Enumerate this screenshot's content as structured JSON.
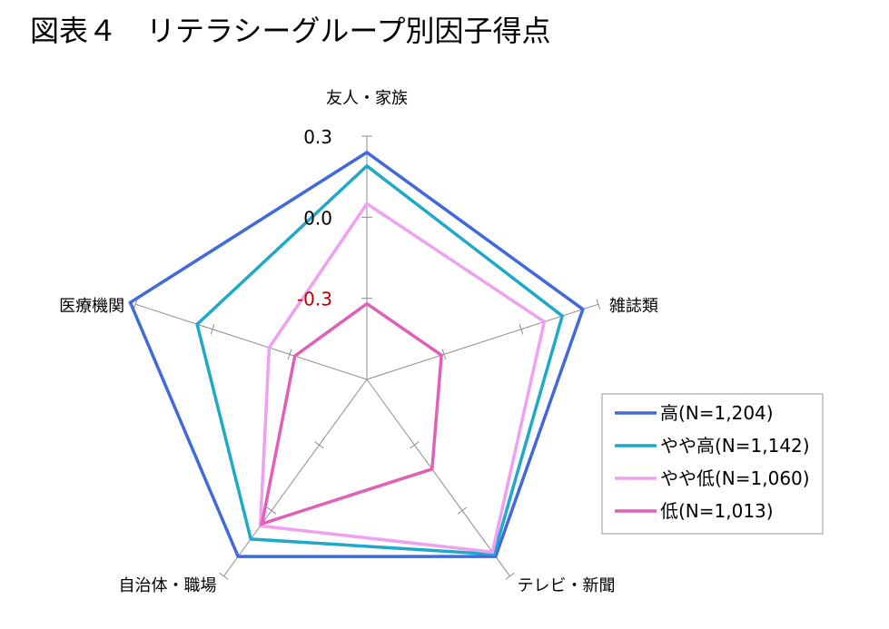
{
  "title": "図表４　リテラシーグループ別因子得点",
  "chart_data": {
    "type": "radar",
    "title": "図表４　リテラシーグループ別因子得点",
    "axes": [
      "友人・家族",
      "雑誌類",
      "テレビ・新聞",
      "自治体・職場",
      "医療機関"
    ],
    "range": [
      -0.6,
      0.3
    ],
    "ticks": [
      {
        "value": 0.3,
        "label": "0.3",
        "color": "#000000"
      },
      {
        "value": 0.0,
        "label": "0.0",
        "color": "#000000"
      },
      {
        "value": -0.3,
        "label": "-0.3",
        "color": "#c00000"
      }
    ],
    "gridlines": false,
    "legend_position": "right",
    "series": [
      {
        "name": "高(N=1,204)",
        "color": "#4169d9",
        "values": [
          0.24,
          0.24,
          0.21,
          0.21,
          0.32
        ]
      },
      {
        "name": "やや高(N=1,142)",
        "color": "#1fa9c9",
        "values": [
          0.19,
          0.16,
          0.2,
          0.13,
          0.06
        ]
      },
      {
        "name": "やや低(N=1,060)",
        "color": "#f0a0f0",
        "values": [
          0.05,
          0.09,
          0.19,
          0.07,
          -0.22
        ]
      },
      {
        "name": "低(N=1,013)",
        "color": "#e060b8",
        "values": [
          -0.32,
          -0.31,
          -0.19,
          0.06,
          -0.32
        ]
      }
    ]
  }
}
